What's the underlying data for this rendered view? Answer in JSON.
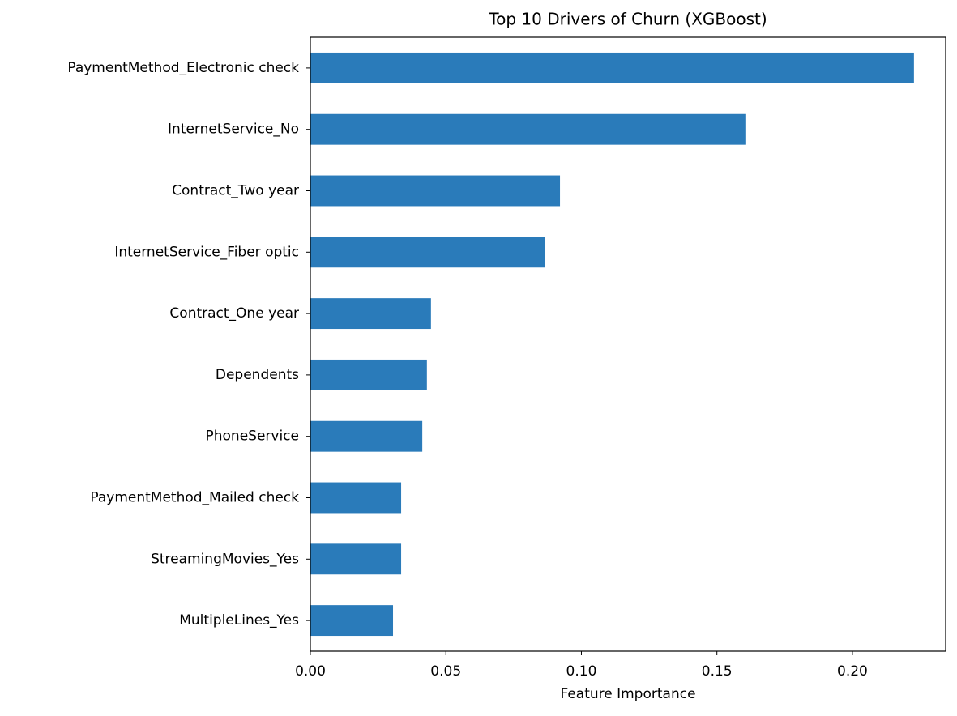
{
  "chart_data": {
    "type": "barh",
    "title": "Top 10 Drivers of Churn (XGBoost)",
    "xlabel": "Feature Importance",
    "categories": [
      "PaymentMethod_Electronic check",
      "InternetService_No",
      "Contract_Two year",
      "InternetService_Fiber optic",
      "Contract_One year",
      "Dependents",
      "PhoneService",
      "PaymentMethod_Mailed check",
      "StreamingMovies_Yes",
      "MultipleLines_Yes"
    ],
    "values": [
      0.2227,
      0.1605,
      0.0921,
      0.0867,
      0.0445,
      0.043,
      0.0413,
      0.0335,
      0.0335,
      0.0305
    ],
    "color": "#2a7bba",
    "xlim": [
      0,
      0.2344
    ],
    "xticks": [
      {
        "value": 0,
        "label": "0.00"
      },
      0.05,
      {
        "value": 0.1,
        "label": "0.10"
      },
      0.15,
      {
        "value": 0.2,
        "label": "0.20"
      }
    ],
    "grid": false
  }
}
